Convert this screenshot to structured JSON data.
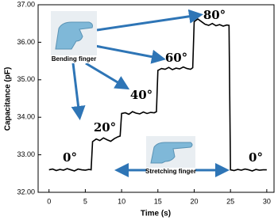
{
  "chart_data": {
    "type": "line",
    "x_label": "Time (s)",
    "y_label": "Capacitance (pF)",
    "xlim": [
      -1.5,
      31
    ],
    "xticks": [
      0,
      5,
      10,
      15,
      20,
      25,
      30
    ],
    "ylim": [
      32,
      37
    ],
    "yticks": [
      {
        "value": 32,
        "label": "32.00"
      },
      {
        "value": 33,
        "label": "33.00"
      },
      {
        "value": 34,
        "label": "34.00"
      },
      {
        "value": 35,
        "label": "35.00"
      },
      {
        "value": 36,
        "label": "36.00"
      },
      {
        "value": 37,
        "label": "37.00"
      }
    ],
    "annotations": {
      "bending": "Bending finger",
      "stretching": "Stretching finger",
      "angles": [
        "0°",
        "20°",
        "40°",
        "60°",
        "80°",
        "0°"
      ]
    },
    "series": [
      {
        "color": "#000000",
        "x": [
          0,
          0.5,
          1,
          1.5,
          2,
          2.5,
          3,
          3.5,
          4,
          4.5,
          5,
          5.5,
          5.8,
          6,
          6.5,
          7,
          7.5,
          8,
          8.5,
          9,
          9.5,
          9.8,
          10,
          10.5,
          11,
          11.5,
          12,
          12.5,
          13,
          13.5,
          14,
          14.5,
          14.8,
          15,
          15.5,
          16,
          16.5,
          17,
          17.5,
          18,
          18.5,
          19,
          19.5,
          19.8,
          20,
          20.5,
          21,
          21.5,
          22,
          22.5,
          23,
          23.5,
          24,
          24.5,
          24.8,
          25,
          25.5,
          26,
          26.5,
          27,
          27.5,
          28,
          28.5,
          29,
          29.5,
          30
        ],
        "values": [
          32.6,
          32.62,
          32.58,
          32.61,
          32.59,
          32.63,
          32.6,
          32.57,
          32.62,
          32.6,
          32.59,
          32.61,
          32.6,
          33.35,
          33.42,
          33.38,
          33.45,
          33.4,
          33.36,
          33.43,
          33.48,
          33.5,
          34.1,
          34.12,
          34.08,
          34.15,
          34.11,
          34.09,
          34.14,
          34.1,
          34.13,
          34.12,
          34.15,
          35.25,
          35.3,
          35.28,
          35.33,
          35.27,
          35.31,
          35.29,
          35.34,
          35.3,
          35.28,
          35.32,
          36.55,
          36.62,
          36.55,
          36.48,
          36.45,
          36.5,
          36.44,
          36.47,
          36.43,
          36.46,
          36.45,
          32.6,
          32.58,
          32.61,
          32.59,
          32.62,
          32.6,
          32.57,
          32.61,
          32.59,
          32.6,
          32.6
        ]
      }
    ]
  }
}
